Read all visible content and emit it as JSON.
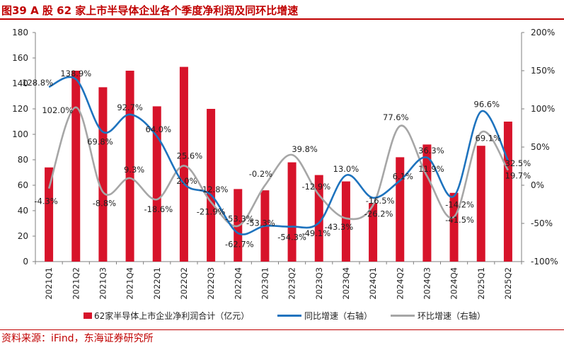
{
  "header": {
    "title": "图39 A 股 62 家上市半导体企业各个季度净利润及同环比增速",
    "source": "资料来源：iFind，东海证券研究所"
  },
  "chart_data": {
    "type": "bar+line",
    "categories": [
      "2021Q1",
      "2021Q2",
      "2021Q3",
      "2021Q4",
      "2022Q1",
      "2022Q2",
      "2022Q3",
      "2022Q4",
      "2023Q1",
      "2023Q2",
      "2023Q3",
      "2023Q4",
      "2024Q1",
      "2024Q2",
      "2024Q3",
      "2024Q4",
      "2025Q1",
      "2025Q2"
    ],
    "left_axis": {
      "min": 0,
      "max": 180,
      "step": 20,
      "ticks": [
        "0",
        "20",
        "40",
        "60",
        "80",
        "100",
        "120",
        "140",
        "160",
        "180"
      ]
    },
    "right_axis": {
      "min": -100,
      "max": 200,
      "step": 50,
      "ticks": [
        "-100%",
        "-50%",
        "0%",
        "50%",
        "100%",
        "150%",
        "200%"
      ]
    },
    "series": [
      {
        "name": "62家半导体上市企业净利润合计（亿元）",
        "kind": "bar",
        "axis": "left",
        "color": "#d7132a",
        "values": [
          74,
          150,
          137,
          150,
          122,
          153,
          120,
          57,
          56,
          78,
          68,
          63,
          46,
          82,
          92,
          54,
          91,
          110
        ]
      },
      {
        "name": "同比增速（右轴）",
        "kind": "line",
        "axis": "right",
        "color": "#1e73be",
        "values": [
          128.8,
          138.9,
          69.8,
          92.7,
          64.0,
          2.0,
          -12.8,
          -62.7,
          -53.3,
          -54.3,
          -49.1,
          13.0,
          -16.5,
          6.1,
          36.3,
          -14.2,
          96.6,
          32.5
        ],
        "labels": [
          "128.8%",
          "138.9%",
          "69.8%",
          "92.7%",
          "64.0%",
          "2.0%",
          "-12.8%",
          "-62.7%",
          "-53.3%",
          "-54.3%",
          "-49.1%",
          "13.0%",
          "-16.5%",
          "6.1%",
          "36.3%",
          "-14.2%",
          "96.6%",
          "32.5%"
        ]
      },
      {
        "name": "环比增速（右轴）",
        "kind": "line",
        "axis": "right",
        "color": "#a6a6a6",
        "values": [
          -4.3,
          102.0,
          -8.8,
          9.3,
          -18.6,
          25.6,
          -21.9,
          -53.3,
          -0.2,
          39.8,
          -12.9,
          -43.3,
          -26.2,
          77.6,
          11.9,
          -41.5,
          69.1,
          19.7
        ],
        "labels": [
          "-4.3%",
          "102.0%",
          "-8.8%",
          "9.3%",
          "-18.6%",
          "25.6%",
          "-21.9%",
          "-53.3%",
          "-0.2%",
          "39.8%",
          "-12.9%",
          "-43.3%",
          "-26.2%",
          "77.6%",
          "11.9%",
          "-41.5%",
          "69.1%",
          "19.7%"
        ]
      }
    ],
    "legend": {
      "position": "bottom",
      "bar": "62家半导体上市企业净利润合计（亿元）",
      "yoy": "同比增速（右轴）",
      "qoq": "环比增速（右轴）"
    }
  }
}
